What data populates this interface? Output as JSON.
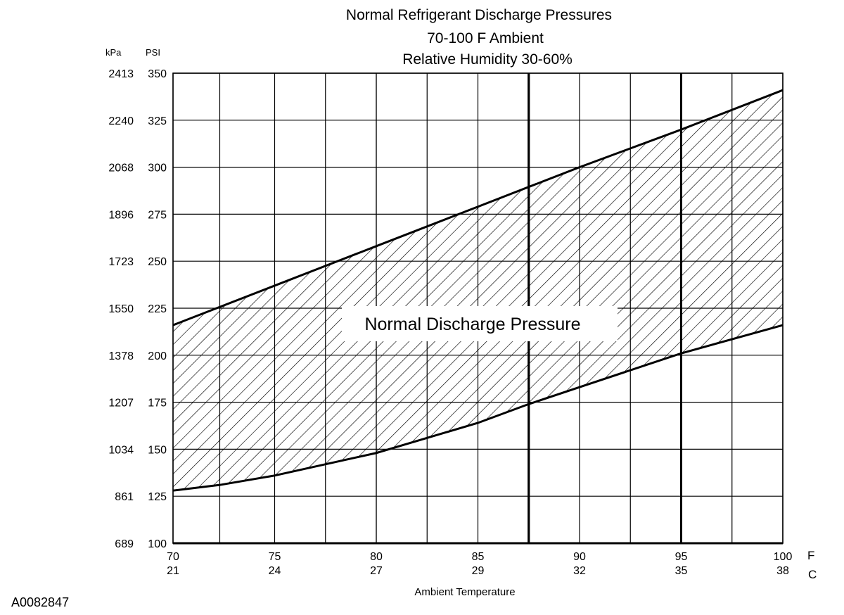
{
  "chart_data": {
    "type": "area",
    "title_lines": [
      "Normal  Refrigerant  Discharge  Pressures",
      "70-100 F Ambient",
      "Relative Humidity 30-60%"
    ],
    "xlabel": "Ambient Temperature",
    "x_unit_primary": "F",
    "x_unit_secondary": "C",
    "y_unit_outer": "kPa",
    "y_unit_inner": "PSI",
    "xlim": [
      70,
      100
    ],
    "ylim": [
      100,
      350
    ],
    "x_ticks": [
      {
        "f": 70,
        "f_label": "70",
        "c_label": "21"
      },
      {
        "f": 75,
        "f_label": "75",
        "c_label": "24"
      },
      {
        "f": 80,
        "f_label": "80",
        "c_label": "27"
      },
      {
        "f": 85,
        "f_label": "85",
        "c_label": "29"
      },
      {
        "f": 90,
        "f_label": "90",
        "c_label": "32"
      },
      {
        "f": 95,
        "f_label": "95",
        "c_label": "35"
      },
      {
        "f": 100,
        "f_label": "100",
        "c_label": "38"
      }
    ],
    "y_ticks": [
      {
        "psi": 100,
        "psi_label": "100",
        "kpa_label": "689"
      },
      {
        "psi": 125,
        "psi_label": "125",
        "kpa_label": "861"
      },
      {
        "psi": 150,
        "psi_label": "150",
        "kpa_label": "1034"
      },
      {
        "psi": 175,
        "psi_label": "175",
        "kpa_label": "1207"
      },
      {
        "psi": 200,
        "psi_label": "200",
        "kpa_label": "1378"
      },
      {
        "psi": 225,
        "psi_label": "225",
        "kpa_label": "1550"
      },
      {
        "psi": 250,
        "psi_label": "250",
        "kpa_label": "1723"
      },
      {
        "psi": 275,
        "psi_label": "275",
        "kpa_label": "1896"
      },
      {
        "psi": 300,
        "psi_label": "300",
        "kpa_label": "2068"
      },
      {
        "psi": 325,
        "psi_label": "325",
        "kpa_label": "2240"
      },
      {
        "psi": 350,
        "psi_label": "350",
        "kpa_label": "2413"
      }
    ],
    "vertical_gridlines_f": [
      72.3,
      77.5,
      80,
      82.5,
      87.5,
      92.5,
      97.5
    ],
    "bold_gridlines_f": [
      87.5,
      95
    ],
    "band": {
      "name": "Normal Discharge Pressure",
      "upper": [
        {
          "x": 70,
          "y": 216
        },
        {
          "x": 75,
          "y": 237
        },
        {
          "x": 80,
          "y": 258
        },
        {
          "x": 85,
          "y": 279
        },
        {
          "x": 90,
          "y": 300
        },
        {
          "x": 95,
          "y": 320
        },
        {
          "x": 100,
          "y": 341
        }
      ],
      "lower": [
        {
          "x": 70,
          "y": 128
        },
        {
          "x": 72.3,
          "y": 131
        },
        {
          "x": 75,
          "y": 136
        },
        {
          "x": 80,
          "y": 148
        },
        {
          "x": 85,
          "y": 164
        },
        {
          "x": 87.5,
          "y": 174
        },
        {
          "x": 90,
          "y": 183
        },
        {
          "x": 95,
          "y": 201
        },
        {
          "x": 100,
          "y": 216
        }
      ]
    },
    "grid": true,
    "legend": "none"
  },
  "figure_id": "A0082847"
}
